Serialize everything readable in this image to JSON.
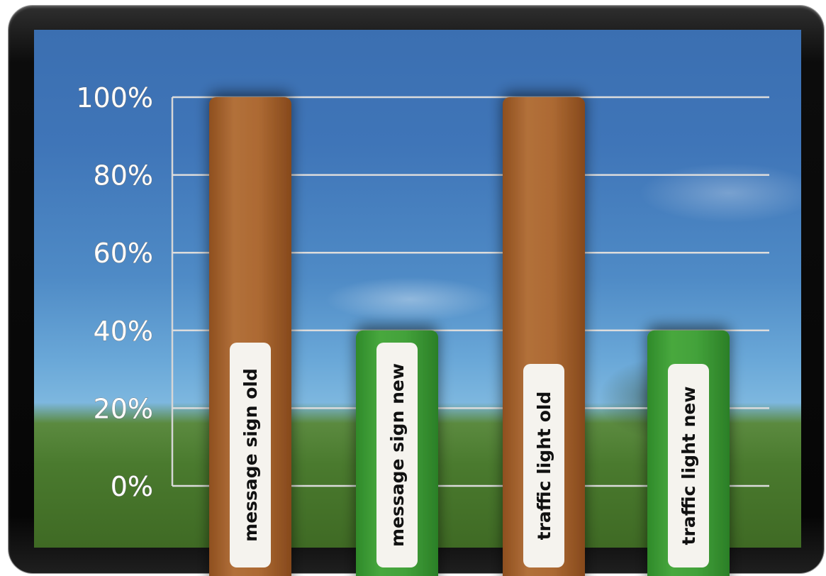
{
  "chart_data": {
    "type": "bar",
    "categories": [
      "message sign old",
      "message sign new",
      "traffic light old",
      "traffic light new"
    ],
    "values": [
      100,
      40,
      100,
      40
    ],
    "ylim": [
      0,
      100
    ],
    "yticks": [
      "0%",
      "20%",
      "40%",
      "60%",
      "80%",
      "100%"
    ],
    "tick_values": [
      0,
      20,
      40,
      60,
      80,
      100
    ],
    "bar_colors": [
      "#a8652e",
      "#3f9a36",
      "#a8652e",
      "#3f9a36"
    ],
    "grid": true,
    "title": "",
    "xlabel": "",
    "ylabel": ""
  }
}
